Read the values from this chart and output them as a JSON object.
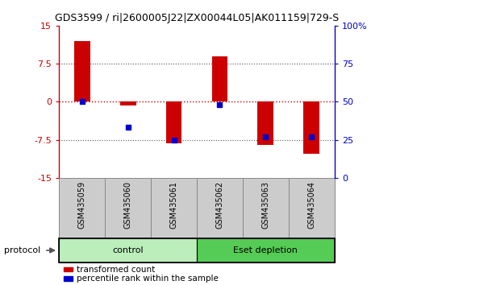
{
  "title": "GDS3599 / ri|2600005J22|ZX00044L05|AK011159|729-S",
  "categories": [
    "GSM435059",
    "GSM435060",
    "GSM435061",
    "GSM435062",
    "GSM435063",
    "GSM435064"
  ],
  "red_values": [
    12.0,
    -0.8,
    -8.2,
    9.0,
    -8.5,
    -10.2
  ],
  "blue_percentiles": [
    50,
    33,
    25,
    48,
    27,
    27
  ],
  "ylim_left": [
    -15,
    15
  ],
  "ylim_right": [
    0,
    100
  ],
  "yticks_left": [
    -15,
    -7.5,
    0,
    7.5,
    15
  ],
  "yticks_right": [
    0,
    25,
    50,
    75,
    100
  ],
  "ytick_labels_left": [
    "-15",
    "-7.5",
    "0",
    "7.5",
    "15"
  ],
  "ytick_labels_right": [
    "0",
    "25",
    "50",
    "75",
    "100%"
  ],
  "dotted_lines": [
    -7.5,
    7.5
  ],
  "group_boxes": [
    [
      0,
      2,
      "control",
      "#bbeebb"
    ],
    [
      3,
      5,
      "Eset depletion",
      "#55cc55"
    ]
  ],
  "protocol_label": "protocol",
  "legend_red": "transformed count",
  "legend_blue": "percentile rank within the sample",
  "bar_color": "#cc0000",
  "bar_width": 0.35,
  "blue_color": "#0000cc",
  "blue_marker": "s",
  "blue_marker_size": 5,
  "hline_color": "#cc0000",
  "dotted_color": "#555555",
  "control_bg": "#cceecc",
  "eset_bg": "#55cc55",
  "xticklabel_bg": "#cccccc",
  "xticklabel_edge": "#888888",
  "fig_width": 6.1,
  "fig_height": 3.54,
  "dpi": 100
}
